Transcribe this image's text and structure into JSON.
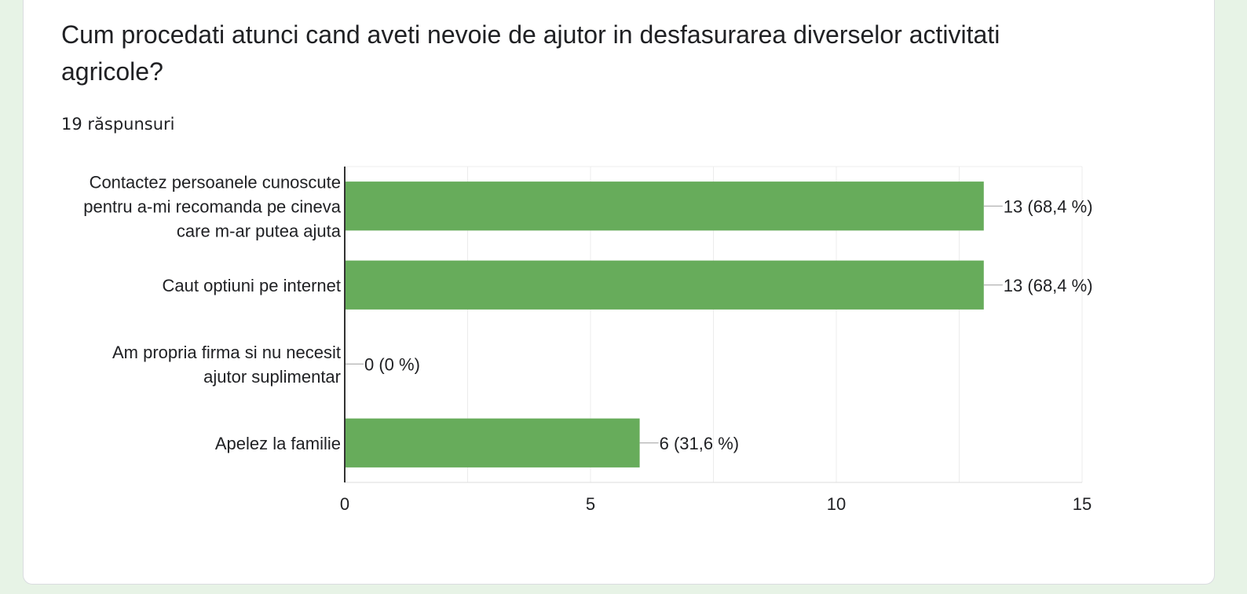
{
  "question": {
    "title": "Cum procedati atunci cand aveti nevoie de ajutor in desfasurarea diverselor activitati agricole?",
    "response_count": "19 răspunsuri"
  },
  "colors": {
    "bar": "#67ac5b",
    "background": "#e7f3e6",
    "card": "#ffffff"
  },
  "chart_data": {
    "type": "bar",
    "orientation": "horizontal",
    "categories": [
      [
        "Contactez persoanele cunoscute",
        "pentru a-mi recomanda pe cineva",
        "care m-ar putea ajuta"
      ],
      [
        "Caut optiuni pe internet"
      ],
      [
        "Am propria firma si nu necesit",
        "ajutor suplimentar"
      ],
      [
        "Apelez la familie"
      ]
    ],
    "values": [
      13,
      13,
      0,
      6
    ],
    "data_labels": [
      "13 (68,4 %)",
      "13 (68,4 %)",
      "0 (0 %)",
      "6 (31,6 %)"
    ],
    "xlim": [
      0,
      15
    ],
    "xticks": [
      0,
      5,
      10,
      15
    ],
    "grid": true,
    "legend": "none"
  }
}
